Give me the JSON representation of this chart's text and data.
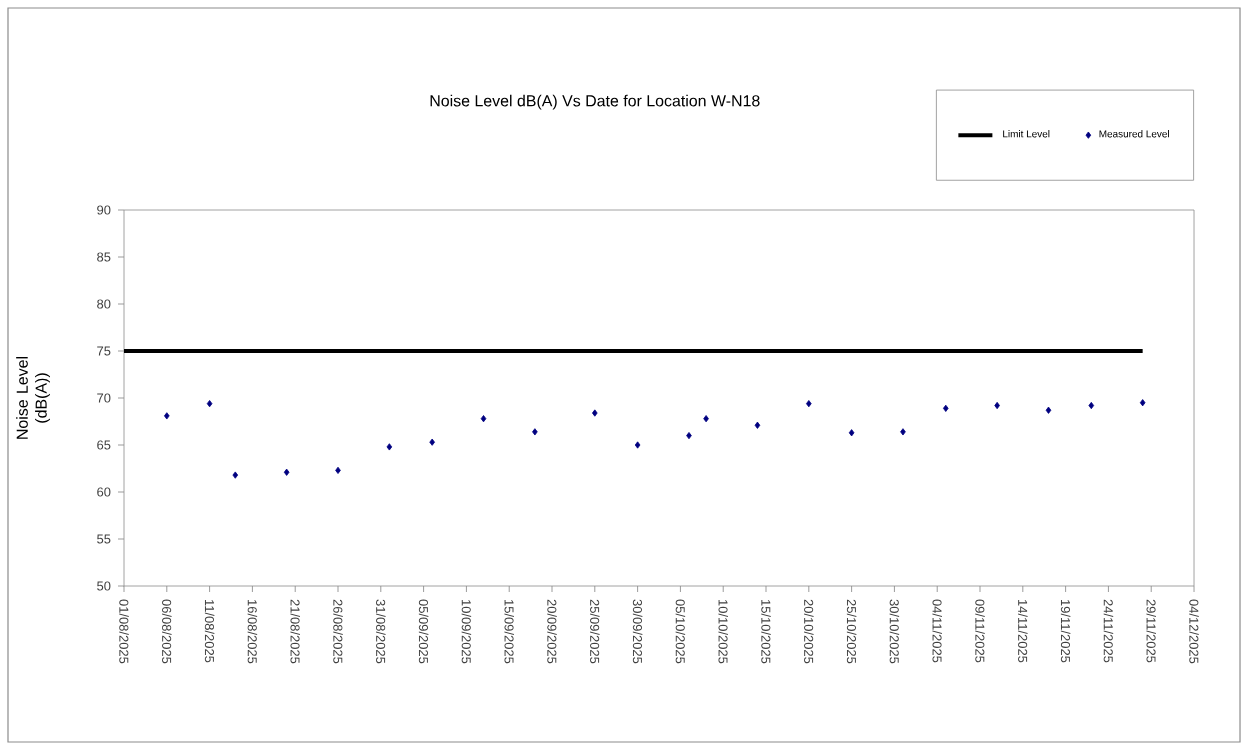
{
  "chart_data": {
    "type": "scatter",
    "title": "Noise Level dB(A) Vs Date for Location W-N18",
    "ylabel": "Noise Level (dB(A))",
    "series": [
      {
        "name": "Limit Level",
        "type": "line",
        "marker": "none",
        "color": "#000000",
        "x": [
          "2025-08-01",
          "2025-11-28"
        ],
        "values": [
          75,
          75
        ]
      },
      {
        "name": "Measured Level",
        "marker": "diamond",
        "color": "#000080",
        "x": [
          "2025-08-06",
          "2025-08-11",
          "2025-08-14",
          "2025-08-20",
          "2025-08-26",
          "2025-09-01",
          "2025-09-06",
          "2025-09-12",
          "2025-09-18",
          "2025-09-25",
          "2025-09-30",
          "2025-10-06",
          "2025-10-08",
          "2025-10-14",
          "2025-10-20",
          "2025-10-25",
          "2025-10-31",
          "2025-11-05",
          "2025-11-11",
          "2025-11-17",
          "2025-11-22",
          "2025-11-28"
        ],
        "values": [
          68.1,
          69.4,
          61.8,
          62.1,
          62.3,
          64.8,
          65.3,
          67.8,
          66.4,
          68.4,
          65.0,
          66.0,
          67.8,
          67.1,
          69.4,
          66.3,
          66.4,
          68.9,
          69.2,
          68.7,
          69.2,
          69.5
        ]
      }
    ],
    "xlim": [
      "2025-08-01",
      "2025-12-04"
    ],
    "xticks": [
      {
        "value": "2025-08-01",
        "label": "01/08/2025"
      },
      {
        "value": "2025-08-06",
        "label": "06/08/2025"
      },
      {
        "value": "2025-08-11",
        "label": "11/08/2025"
      },
      {
        "value": "2025-08-16",
        "label": "16/08/2025"
      },
      {
        "value": "2025-08-21",
        "label": "21/08/2025"
      },
      {
        "value": "2025-08-26",
        "label": "26/08/2025"
      },
      {
        "value": "2025-08-31",
        "label": "31/08/2025"
      },
      {
        "value": "2025-09-05",
        "label": "05/09/2025"
      },
      {
        "value": "2025-09-10",
        "label": "10/09/2025"
      },
      {
        "value": "2025-09-15",
        "label": "15/09/2025"
      },
      {
        "value": "2025-09-20",
        "label": "20/09/2025"
      },
      {
        "value": "2025-09-25",
        "label": "25/09/2025"
      },
      {
        "value": "2025-09-30",
        "label": "30/09/2025"
      },
      {
        "value": "2025-10-05",
        "label": "05/10/2025"
      },
      {
        "value": "2025-10-10",
        "label": "10/10/2025"
      },
      {
        "value": "2025-10-15",
        "label": "15/10/2025"
      },
      {
        "value": "2025-10-20",
        "label": "20/10/2025"
      },
      {
        "value": "2025-10-25",
        "label": "25/10/2025"
      },
      {
        "value": "2025-10-30",
        "label": "30/10/2025"
      },
      {
        "value": "2025-11-04",
        "label": "04/11/2025"
      },
      {
        "value": "2025-11-09",
        "label": "09/11/2025"
      },
      {
        "value": "2025-11-14",
        "label": "14/11/2025"
      },
      {
        "value": "2025-11-19",
        "label": "19/11/2025"
      },
      {
        "value": "2025-11-24",
        "label": "24/11/2025"
      },
      {
        "value": "2025-11-29",
        "label": "29/11/2025"
      },
      {
        "value": "2025-12-04",
        "label": "04/12/2025"
      }
    ],
    "ylim": [
      50,
      90
    ],
    "yticks": [
      50,
      55,
      60,
      65,
      70,
      75,
      80,
      85,
      90
    ],
    "grid": false,
    "legend": "top right",
    "line_style": "solid"
  }
}
